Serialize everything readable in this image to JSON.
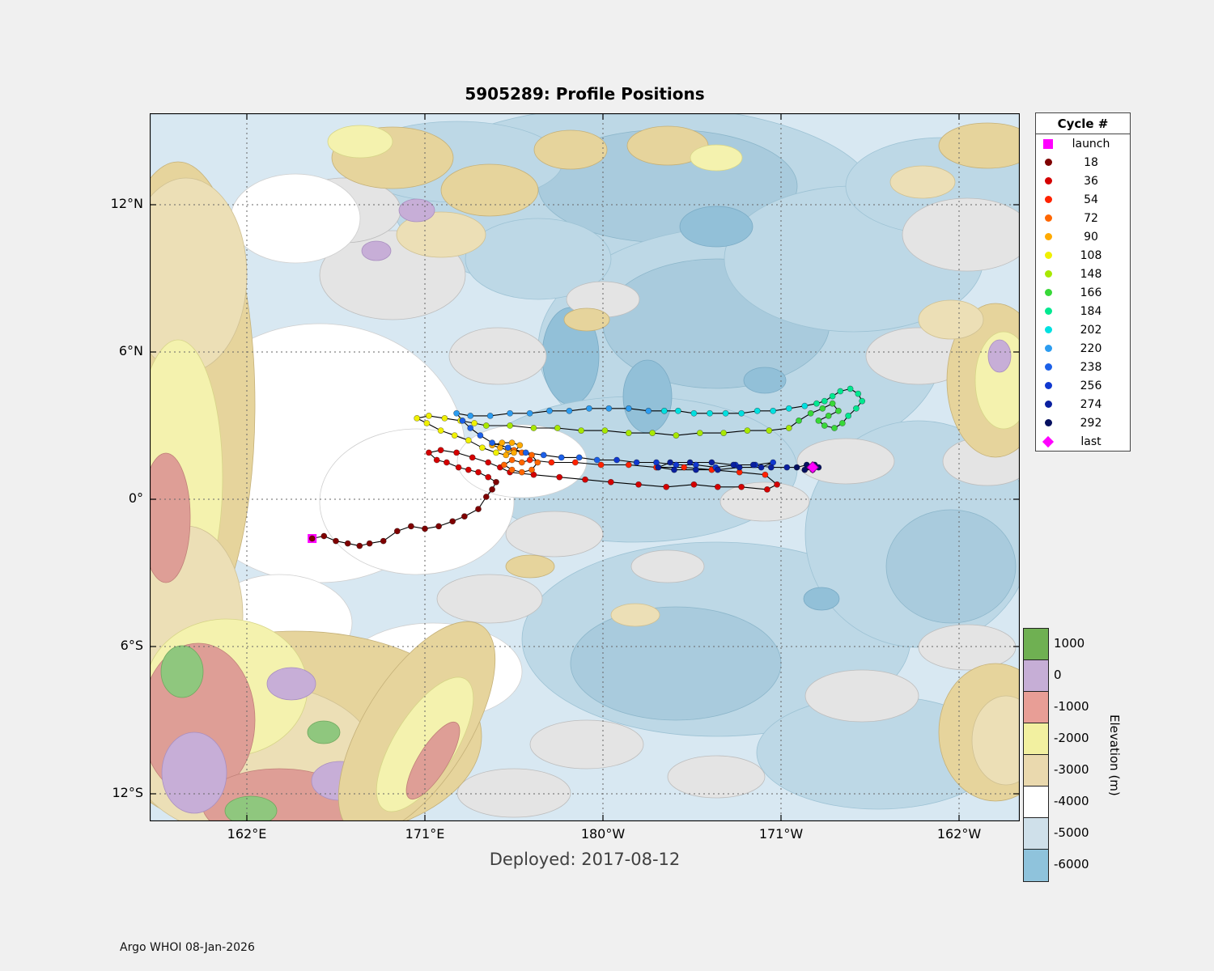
{
  "title": "5905289: Profile Positions",
  "deployed_label": "Deployed: 2017-08-12",
  "footer": "Argo WHOI 08-Jan-2026",
  "legend": {
    "title": "Cycle #",
    "entries": [
      {
        "label": "launch",
        "marker": "square",
        "color": "#ff00ff"
      },
      {
        "label": "18",
        "marker": "circle",
        "color": "#7f0000"
      },
      {
        "label": "36",
        "marker": "circle",
        "color": "#d40000"
      },
      {
        "label": "54",
        "marker": "circle",
        "color": "#ff2200"
      },
      {
        "label": "72",
        "marker": "circle",
        "color": "#ff6600"
      },
      {
        "label": "90",
        "marker": "circle",
        "color": "#ffaa00"
      },
      {
        "label": "108",
        "marker": "circle",
        "color": "#f0f000"
      },
      {
        "label": "148",
        "marker": "circle",
        "color": "#a8e800"
      },
      {
        "label": "166",
        "marker": "circle",
        "color": "#38d838"
      },
      {
        "label": "184",
        "marker": "circle",
        "color": "#00e890"
      },
      {
        "label": "202",
        "marker": "circle",
        "color": "#00e0e0"
      },
      {
        "label": "220",
        "marker": "circle",
        "color": "#2c9cf0"
      },
      {
        "label": "238",
        "marker": "circle",
        "color": "#1c60e8"
      },
      {
        "label": "256",
        "marker": "circle",
        "color": "#1038d0"
      },
      {
        "label": "274",
        "marker": "circle",
        "color": "#0a20a0"
      },
      {
        "label": "292",
        "marker": "circle",
        "color": "#051060"
      },
      {
        "label": "last",
        "marker": "diamond",
        "color": "#ff00ff"
      }
    ]
  },
  "axes": {
    "x_ticks": [
      {
        "label": "162°E",
        "lon": 162
      },
      {
        "label": "171°E",
        "lon": 171
      },
      {
        "label": "180°W",
        "lon": 180
      },
      {
        "label": "171°W",
        "lon": 189
      },
      {
        "label": "162°W",
        "lon": 198
      }
    ],
    "y_ticks": [
      {
        "label": "12°N",
        "lat": 12
      },
      {
        "label": "6°N",
        "lat": 6
      },
      {
        "label": "0°",
        "lat": 0
      },
      {
        "label": "6°S",
        "lat": -6
      },
      {
        "label": "12°S",
        "lat": -12
      }
    ]
  },
  "colorbar": {
    "label": "Elevation (m)",
    "ticks": [
      "1000",
      "0",
      "-1000",
      "-2000",
      "-3000",
      "-4000",
      "-5000",
      "-6000"
    ],
    "colors": [
      "#6fb052",
      "#c6aed6",
      "#e89e96",
      "#f2f0a0",
      "#ead9ae",
      "#ffffff",
      "#cfe0ea",
      "#8fc3dc"
    ]
  },
  "chart_data": {
    "type": "scatter",
    "title": "5905289: Profile Positions",
    "description": "Argo float trajectory over bathymetry map; points colored by cycle number, connected by a black track line. Longitudes are continuous degrees east (189 = 171W, 198 = 162W).",
    "lon_range": [
      157.1,
      201.1
    ],
    "lat_range": [
      -13.1,
      15.7
    ],
    "deployed_date": "2017-08-12",
    "launch": {
      "color": "#ff00ff",
      "point": [
        165.3,
        -1.6
      ]
    },
    "last": {
      "color": "#ff00ff",
      "point": [
        190.6,
        1.3
      ]
    },
    "trajectory_segments": [
      {
        "cycle": "18",
        "color": "#7f0000",
        "points": [
          [
            165.3,
            -1.6
          ],
          [
            165.9,
            -1.5
          ],
          [
            166.5,
            -1.7
          ],
          [
            167.1,
            -1.8
          ],
          [
            167.7,
            -1.9
          ],
          [
            168.2,
            -1.8
          ],
          [
            168.9,
            -1.7
          ],
          [
            169.6,
            -1.3
          ],
          [
            170.3,
            -1.1
          ],
          [
            171.0,
            -1.2
          ],
          [
            171.7,
            -1.1
          ],
          [
            172.4,
            -0.9
          ],
          [
            173.0,
            -0.7
          ],
          [
            173.7,
            -0.4
          ],
          [
            174.1,
            0.1
          ],
          [
            174.4,
            0.4
          ],
          [
            174.6,
            0.7
          ]
        ]
      },
      {
        "cycle": "36",
        "color": "#d40000",
        "points": [
          [
            174.2,
            0.9
          ],
          [
            173.7,
            1.1
          ],
          [
            173.2,
            1.2
          ],
          [
            172.7,
            1.3
          ],
          [
            172.1,
            1.5
          ],
          [
            171.6,
            1.6
          ],
          [
            171.2,
            1.9
          ],
          [
            171.8,
            2.0
          ],
          [
            172.6,
            1.9
          ],
          [
            173.4,
            1.7
          ],
          [
            174.2,
            1.5
          ],
          [
            174.8,
            1.3
          ],
          [
            175.3,
            1.1
          ],
          [
            176.5,
            1.0
          ],
          [
            177.8,
            0.9
          ],
          [
            179.1,
            0.8
          ],
          [
            180.4,
            0.7
          ],
          [
            181.8,
            0.6
          ],
          [
            183.2,
            0.5
          ],
          [
            184.6,
            0.6
          ],
          [
            185.8,
            0.5
          ],
          [
            187.0,
            0.5
          ],
          [
            188.3,
            0.4
          ],
          [
            188.8,
            0.6
          ]
        ]
      },
      {
        "cycle": "54",
        "color": "#ff2200",
        "points": [
          [
            188.2,
            1.0
          ],
          [
            186.9,
            1.1
          ],
          [
            185.5,
            1.2
          ],
          [
            184.1,
            1.3
          ],
          [
            182.7,
            1.3
          ],
          [
            181.3,
            1.4
          ],
          [
            179.9,
            1.4
          ],
          [
            178.6,
            1.5
          ],
          [
            177.4,
            1.5
          ],
          [
            176.3,
            1.6
          ]
        ]
      },
      {
        "cycle": "72",
        "color": "#ff6600",
        "points": [
          [
            175.9,
            1.5
          ],
          [
            175.4,
            1.6
          ],
          [
            175.0,
            1.4
          ],
          [
            175.4,
            1.2
          ],
          [
            175.9,
            1.1
          ],
          [
            176.4,
            1.2
          ],
          [
            176.7,
            1.5
          ],
          [
            176.4,
            1.8
          ],
          [
            175.9,
            1.9
          ],
          [
            175.5,
            2.0
          ]
        ]
      },
      {
        "cycle": "90",
        "color": "#ffaa00",
        "points": [
          [
            175.2,
            2.0
          ],
          [
            174.8,
            2.1
          ],
          [
            174.4,
            2.2
          ],
          [
            174.9,
            2.3
          ],
          [
            175.4,
            2.3
          ],
          [
            175.8,
            2.2
          ],
          [
            175.5,
            1.9
          ],
          [
            175.1,
            1.8
          ]
        ]
      },
      {
        "cycle": "108",
        "color": "#f0f000",
        "points": [
          [
            174.6,
            1.9
          ],
          [
            173.9,
            2.1
          ],
          [
            173.2,
            2.4
          ],
          [
            172.5,
            2.6
          ],
          [
            171.8,
            2.8
          ],
          [
            171.1,
            3.1
          ],
          [
            170.6,
            3.3
          ],
          [
            171.2,
            3.4
          ],
          [
            172.0,
            3.3
          ],
          [
            172.8,
            3.2
          ],
          [
            173.5,
            3.1
          ]
        ]
      },
      {
        "cycle": "148",
        "color": "#a8e800",
        "points": [
          [
            174.1,
            3.0
          ],
          [
            175.3,
            3.0
          ],
          [
            176.5,
            2.9
          ],
          [
            177.7,
            2.9
          ],
          [
            178.9,
            2.8
          ],
          [
            180.1,
            2.8
          ],
          [
            181.3,
            2.7
          ],
          [
            182.5,
            2.7
          ],
          [
            183.7,
            2.6
          ],
          [
            184.9,
            2.7
          ],
          [
            186.1,
            2.7
          ],
          [
            187.3,
            2.8
          ],
          [
            188.4,
            2.8
          ],
          [
            189.4,
            2.9
          ]
        ]
      },
      {
        "cycle": "166",
        "color": "#38d838",
        "points": [
          [
            189.9,
            3.2
          ],
          [
            190.5,
            3.5
          ],
          [
            191.1,
            3.7
          ],
          [
            191.6,
            3.9
          ],
          [
            191.9,
            3.6
          ],
          [
            191.4,
            3.4
          ],
          [
            190.9,
            3.2
          ],
          [
            191.2,
            3.0
          ],
          [
            191.7,
            2.9
          ],
          [
            192.1,
            3.1
          ]
        ]
      },
      {
        "cycle": "184",
        "color": "#00e890",
        "points": [
          [
            192.4,
            3.4
          ],
          [
            192.8,
            3.7
          ],
          [
            193.1,
            4.0
          ],
          [
            192.9,
            4.3
          ],
          [
            192.5,
            4.5
          ],
          [
            192.0,
            4.4
          ],
          [
            191.6,
            4.2
          ],
          [
            191.2,
            4.0
          ],
          [
            190.8,
            3.9
          ]
        ]
      },
      {
        "cycle": "202",
        "color": "#00e0e0",
        "points": [
          [
            190.2,
            3.8
          ],
          [
            189.4,
            3.7
          ],
          [
            188.6,
            3.6
          ],
          [
            187.8,
            3.6
          ],
          [
            187.0,
            3.5
          ],
          [
            186.2,
            3.5
          ],
          [
            185.4,
            3.5
          ],
          [
            184.6,
            3.5
          ],
          [
            183.8,
            3.6
          ],
          [
            183.1,
            3.6
          ]
        ]
      },
      {
        "cycle": "220",
        "color": "#2c9cf0",
        "points": [
          [
            182.3,
            3.6
          ],
          [
            181.3,
            3.7
          ],
          [
            180.3,
            3.7
          ],
          [
            179.3,
            3.7
          ],
          [
            178.3,
            3.6
          ],
          [
            177.3,
            3.6
          ],
          [
            176.3,
            3.5
          ],
          [
            175.3,
            3.5
          ],
          [
            174.3,
            3.4
          ],
          [
            173.3,
            3.4
          ],
          [
            172.6,
            3.5
          ]
        ]
      },
      {
        "cycle": "238",
        "color": "#1c60e8",
        "points": [
          [
            172.9,
            3.2
          ],
          [
            173.3,
            2.9
          ],
          [
            173.8,
            2.6
          ],
          [
            174.4,
            2.3
          ],
          [
            175.2,
            2.1
          ],
          [
            176.1,
            1.9
          ],
          [
            177.0,
            1.8
          ],
          [
            177.9,
            1.7
          ],
          [
            178.8,
            1.7
          ],
          [
            179.7,
            1.6
          ]
        ]
      },
      {
        "cycle": "256",
        "color": "#1038d0",
        "points": [
          [
            180.7,
            1.6
          ],
          [
            181.7,
            1.5
          ],
          [
            182.7,
            1.5
          ],
          [
            183.7,
            1.4
          ],
          [
            184.7,
            1.4
          ],
          [
            185.7,
            1.3
          ],
          [
            186.7,
            1.4
          ],
          [
            187.7,
            1.4
          ],
          [
            188.6,
            1.5
          ]
        ]
      },
      {
        "cycle": "274",
        "color": "#0a20a0",
        "points": [
          [
            188.0,
            1.3
          ],
          [
            186.9,
            1.3
          ],
          [
            185.8,
            1.2
          ],
          [
            184.7,
            1.2
          ],
          [
            183.6,
            1.2
          ],
          [
            182.8,
            1.3
          ],
          [
            183.4,
            1.5
          ],
          [
            184.4,
            1.5
          ],
          [
            185.5,
            1.5
          ],
          [
            186.6,
            1.4
          ],
          [
            187.6,
            1.4
          ],
          [
            188.5,
            1.3
          ],
          [
            189.3,
            1.3
          ]
        ]
      },
      {
        "cycle": "292",
        "color": "#051060",
        "points": [
          [
            189.8,
            1.3
          ],
          [
            190.3,
            1.4
          ],
          [
            190.7,
            1.4
          ],
          [
            190.9,
            1.3
          ],
          [
            190.6,
            1.2
          ],
          [
            190.2,
            1.2
          ],
          [
            190.5,
            1.3
          ]
        ]
      }
    ]
  }
}
